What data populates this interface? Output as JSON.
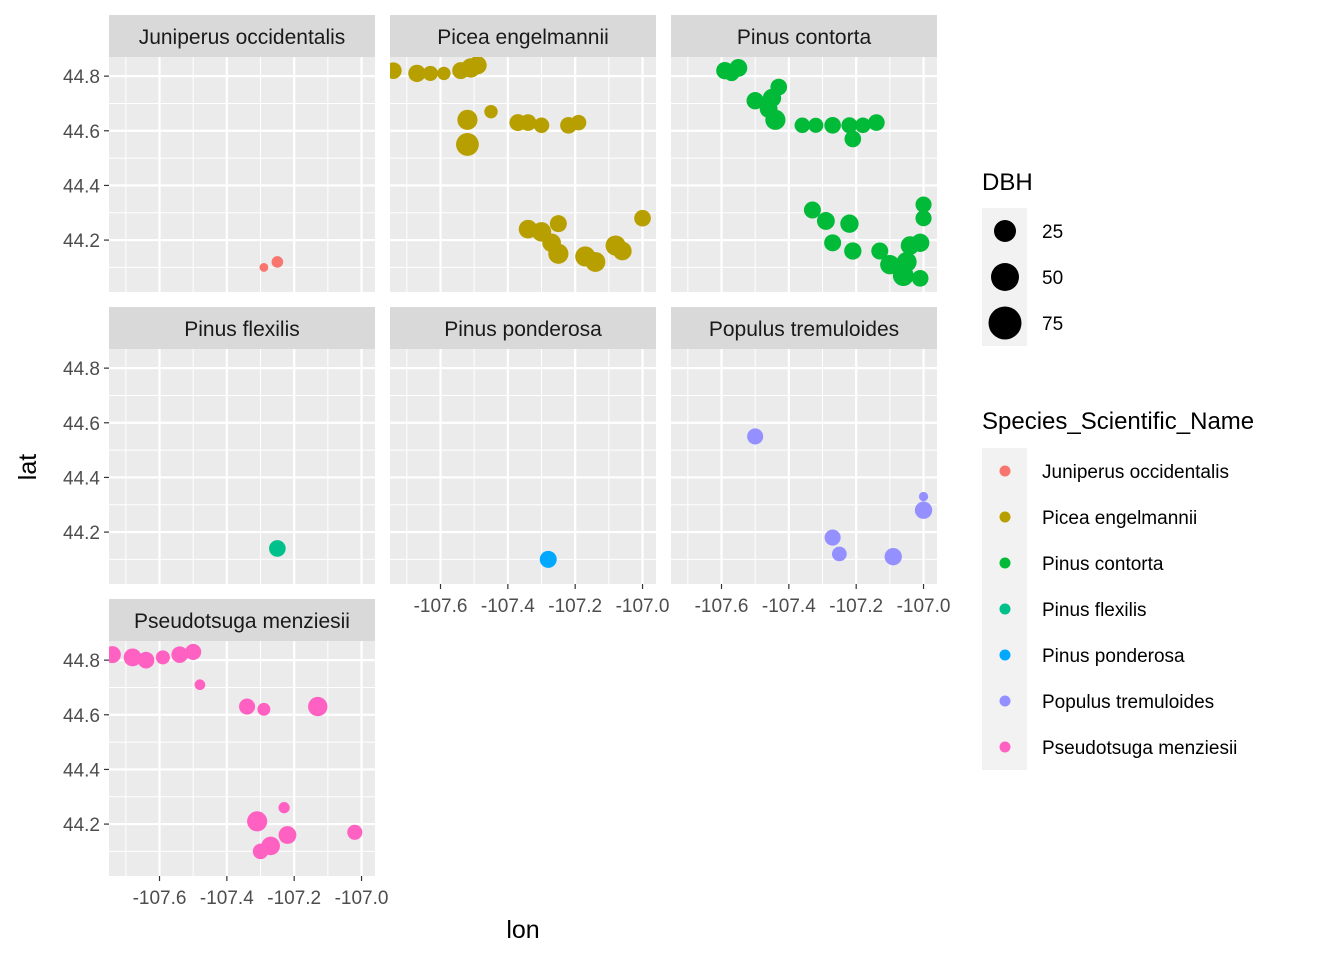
{
  "chart_data": {
    "type": "scatter",
    "facet_by": "Species_Scientific_Name",
    "xlabel": "lon",
    "ylabel": "lat",
    "xlim": [
      -107.75,
      -106.96
    ],
    "ylim": [
      44.01,
      44.87
    ],
    "x_ticks": [
      -107.6,
      -107.4,
      -107.2,
      -107.0
    ],
    "x_tick_labels": [
      "-107.6",
      "-107.4",
      "-107.2",
      "-107.0"
    ],
    "y_ticks": [
      44.2,
      44.4,
      44.6,
      44.8
    ],
    "y_tick_labels": [
      "44.2",
      "44.4",
      "44.6",
      "44.8"
    ],
    "size_legend": {
      "title": "DBH",
      "values": [
        25,
        50,
        75
      ],
      "labels": [
        "25",
        "50",
        "75"
      ]
    },
    "color_legend": {
      "title": "Species_Scientific_Name",
      "placement": "right"
    },
    "series": [
      {
        "name": "Juniperus occidentalis",
        "color": "#F8766D",
        "points": [
          {
            "x": -107.25,
            "y": 44.12,
            "dbh": 15
          },
          {
            "x": -107.29,
            "y": 44.1,
            "dbh": 7
          }
        ]
      },
      {
        "name": "Picea engelmannii",
        "color": "#B79F00",
        "points": [
          {
            "x": -107.74,
            "y": 44.82,
            "dbh": 38
          },
          {
            "x": -107.67,
            "y": 44.81,
            "dbh": 42
          },
          {
            "x": -107.63,
            "y": 44.81,
            "dbh": 30
          },
          {
            "x": -107.59,
            "y": 44.81,
            "dbh": 22
          },
          {
            "x": -107.54,
            "y": 44.82,
            "dbh": 40
          },
          {
            "x": -107.51,
            "y": 44.83,
            "dbh": 55
          },
          {
            "x": -107.49,
            "y": 44.84,
            "dbh": 48
          },
          {
            "x": -107.45,
            "y": 44.67,
            "dbh": 22
          },
          {
            "x": -107.52,
            "y": 44.64,
            "dbh": 60
          },
          {
            "x": -107.52,
            "y": 44.55,
            "dbh": 80
          },
          {
            "x": -107.37,
            "y": 44.63,
            "dbh": 40
          },
          {
            "x": -107.34,
            "y": 44.63,
            "dbh": 38
          },
          {
            "x": -107.3,
            "y": 44.62,
            "dbh": 32
          },
          {
            "x": -107.22,
            "y": 44.62,
            "dbh": 38
          },
          {
            "x": -107.19,
            "y": 44.63,
            "dbh": 32
          },
          {
            "x": -107.34,
            "y": 44.24,
            "dbh": 50
          },
          {
            "x": -107.3,
            "y": 44.23,
            "dbh": 55
          },
          {
            "x": -107.25,
            "y": 44.26,
            "dbh": 40
          },
          {
            "x": -107.27,
            "y": 44.19,
            "dbh": 50
          },
          {
            "x": -107.25,
            "y": 44.15,
            "dbh": 60
          },
          {
            "x": -107.17,
            "y": 44.14,
            "dbh": 60
          },
          {
            "x": -107.14,
            "y": 44.12,
            "dbh": 58
          },
          {
            "x": -107.08,
            "y": 44.18,
            "dbh": 60
          },
          {
            "x": -107.06,
            "y": 44.16,
            "dbh": 50
          },
          {
            "x": -107.0,
            "y": 44.28,
            "dbh": 38
          }
        ]
      },
      {
        "name": "Pinus contorta",
        "color": "#00BA38",
        "points": [
          {
            "x": -107.59,
            "y": 44.82,
            "dbh": 42
          },
          {
            "x": -107.55,
            "y": 44.83,
            "dbh": 45
          },
          {
            "x": -107.57,
            "y": 44.81,
            "dbh": 32
          },
          {
            "x": -107.5,
            "y": 44.71,
            "dbh": 42
          },
          {
            "x": -107.45,
            "y": 44.72,
            "dbh": 48
          },
          {
            "x": -107.43,
            "y": 44.76,
            "dbh": 38
          },
          {
            "x": -107.46,
            "y": 44.68,
            "dbh": 45
          },
          {
            "x": -107.44,
            "y": 44.64,
            "dbh": 60
          },
          {
            "x": -107.36,
            "y": 44.62,
            "dbh": 32
          },
          {
            "x": -107.32,
            "y": 44.62,
            "dbh": 30
          },
          {
            "x": -107.27,
            "y": 44.62,
            "dbh": 38
          },
          {
            "x": -107.22,
            "y": 44.62,
            "dbh": 35
          },
          {
            "x": -107.21,
            "y": 44.57,
            "dbh": 38
          },
          {
            "x": -107.18,
            "y": 44.62,
            "dbh": 32
          },
          {
            "x": -107.14,
            "y": 44.63,
            "dbh": 38
          },
          {
            "x": -107.33,
            "y": 44.31,
            "dbh": 40
          },
          {
            "x": -107.29,
            "y": 44.27,
            "dbh": 45
          },
          {
            "x": -107.27,
            "y": 44.19,
            "dbh": 40
          },
          {
            "x": -107.22,
            "y": 44.26,
            "dbh": 48
          },
          {
            "x": -107.21,
            "y": 44.16,
            "dbh": 42
          },
          {
            "x": -107.13,
            "y": 44.16,
            "dbh": 40
          },
          {
            "x": -107.1,
            "y": 44.11,
            "dbh": 55
          },
          {
            "x": -107.06,
            "y": 44.07,
            "dbh": 65
          },
          {
            "x": -107.05,
            "y": 44.12,
            "dbh": 58
          },
          {
            "x": -107.04,
            "y": 44.18,
            "dbh": 50
          },
          {
            "x": -107.01,
            "y": 44.19,
            "dbh": 48
          },
          {
            "x": -107.0,
            "y": 44.28,
            "dbh": 35
          },
          {
            "x": -107.0,
            "y": 44.33,
            "dbh": 35
          },
          {
            "x": -107.01,
            "y": 44.06,
            "dbh": 38
          }
        ]
      },
      {
        "name": "Pinus flexilis",
        "color": "#00C08B",
        "points": [
          {
            "x": -107.25,
            "y": 44.14,
            "dbh": 38
          }
        ]
      },
      {
        "name": "Pinus ponderosa",
        "color": "#00A9FF",
        "points": [
          {
            "x": -107.28,
            "y": 44.1,
            "dbh": 40
          }
        ]
      },
      {
        "name": "Populus tremuloides",
        "color": "#9590FF",
        "points": [
          {
            "x": -107.5,
            "y": 44.55,
            "dbh": 35
          },
          {
            "x": -107.27,
            "y": 44.18,
            "dbh": 35
          },
          {
            "x": -107.25,
            "y": 44.12,
            "dbh": 28
          },
          {
            "x": -107.09,
            "y": 44.11,
            "dbh": 42
          },
          {
            "x": -107.0,
            "y": 44.28,
            "dbh": 42
          },
          {
            "x": -107.0,
            "y": 44.33,
            "dbh": 8
          }
        ]
      },
      {
        "name": "Pseudotsuga menziesii",
        "color": "#FF61C3",
        "points": [
          {
            "x": -107.74,
            "y": 44.82,
            "dbh": 40
          },
          {
            "x": -107.68,
            "y": 44.81,
            "dbh": 45
          },
          {
            "x": -107.64,
            "y": 44.8,
            "dbh": 38
          },
          {
            "x": -107.59,
            "y": 44.81,
            "dbh": 25
          },
          {
            "x": -107.54,
            "y": 44.82,
            "dbh": 38
          },
          {
            "x": -107.5,
            "y": 44.83,
            "dbh": 35
          },
          {
            "x": -107.48,
            "y": 44.71,
            "dbh": 12
          },
          {
            "x": -107.34,
            "y": 44.63,
            "dbh": 35
          },
          {
            "x": -107.29,
            "y": 44.62,
            "dbh": 20
          },
          {
            "x": -107.13,
            "y": 44.63,
            "dbh": 55
          },
          {
            "x": -107.31,
            "y": 44.21,
            "dbh": 60
          },
          {
            "x": -107.27,
            "y": 44.12,
            "dbh": 50
          },
          {
            "x": -107.3,
            "y": 44.1,
            "dbh": 32
          },
          {
            "x": -107.22,
            "y": 44.16,
            "dbh": 45
          },
          {
            "x": -107.23,
            "y": 44.26,
            "dbh": 14
          },
          {
            "x": -107.02,
            "y": 44.17,
            "dbh": 30
          }
        ]
      }
    ]
  }
}
